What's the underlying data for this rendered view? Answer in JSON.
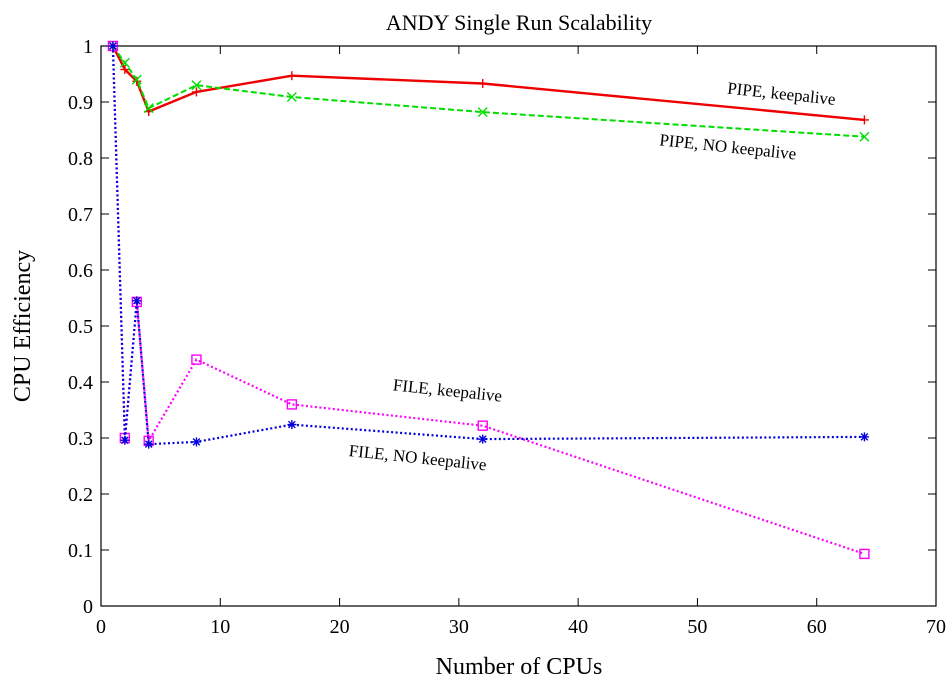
{
  "chart_data": {
    "type": "line",
    "title": "ANDY Single Run Scalability",
    "xlabel": "Number of CPUs",
    "ylabel": "CPU Efficiency",
    "xlim": [
      0,
      70
    ],
    "ylim": [
      0,
      1
    ],
    "xticks": [
      0,
      10,
      20,
      30,
      40,
      50,
      60,
      70
    ],
    "yticks": [
      0,
      0.1,
      0.2,
      0.3,
      0.4,
      0.5,
      0.6,
      0.7,
      0.8,
      0.9,
      1
    ],
    "ytick_labels": [
      "0",
      "0.1",
      "0.2",
      "0.3",
      "0.4",
      "0.5",
      "0.6",
      "0.7",
      "0.8",
      "0.9",
      "1"
    ],
    "grid": false,
    "legend": "none",
    "series": [
      {
        "name": "PIPE, keepalive",
        "color": "#ee0000",
        "style": "solid",
        "marker": "plus",
        "x": [
          1,
          2,
          3,
          4,
          8,
          16,
          32,
          64
        ],
        "y": [
          1.0,
          0.958,
          0.937,
          0.883,
          0.918,
          0.947,
          0.933,
          0.868
        ]
      },
      {
        "name": "PIPE, NO keepalive",
        "color": "#00dd00",
        "style": "dashed",
        "marker": "x",
        "x": [
          1,
          2,
          3,
          4,
          8,
          16,
          32,
          64
        ],
        "y": [
          1.0,
          0.97,
          0.94,
          0.889,
          0.93,
          0.909,
          0.882,
          0.838
        ]
      },
      {
        "name": "FILE, keepalive",
        "color": "#ff00ff",
        "style": "dotted",
        "marker": "square",
        "x": [
          1,
          2,
          3,
          4,
          8,
          16,
          32,
          64
        ],
        "y": [
          1.0,
          0.3,
          0.543,
          0.295,
          0.44,
          0.36,
          0.322,
          0.093
        ]
      },
      {
        "name": "FILE, NO keepalive",
        "color": "#0000dd",
        "style": "dotted",
        "marker": "star",
        "x": [
          1,
          2,
          3,
          4,
          8,
          16,
          32,
          64
        ],
        "y": [
          1.0,
          0.296,
          0.545,
          0.289,
          0.293,
          0.324,
          0.298,
          0.302
        ]
      }
    ],
    "annotations": [
      {
        "text": "PIPE, keepalive",
        "x": 57,
        "y": 0.905,
        "angle": 6,
        "series": 0
      },
      {
        "text": "PIPE, NO keepalive",
        "x": 52.5,
        "y": 0.81,
        "angle": 6,
        "series": 1
      },
      {
        "text": "FILE, keepalive",
        "x": 29,
        "y": 0.375,
        "angle": 6,
        "series": 2
      },
      {
        "text": "FILE, NO keepalive",
        "x": 26.5,
        "y": 0.255,
        "angle": 6,
        "series": 3
      }
    ]
  }
}
